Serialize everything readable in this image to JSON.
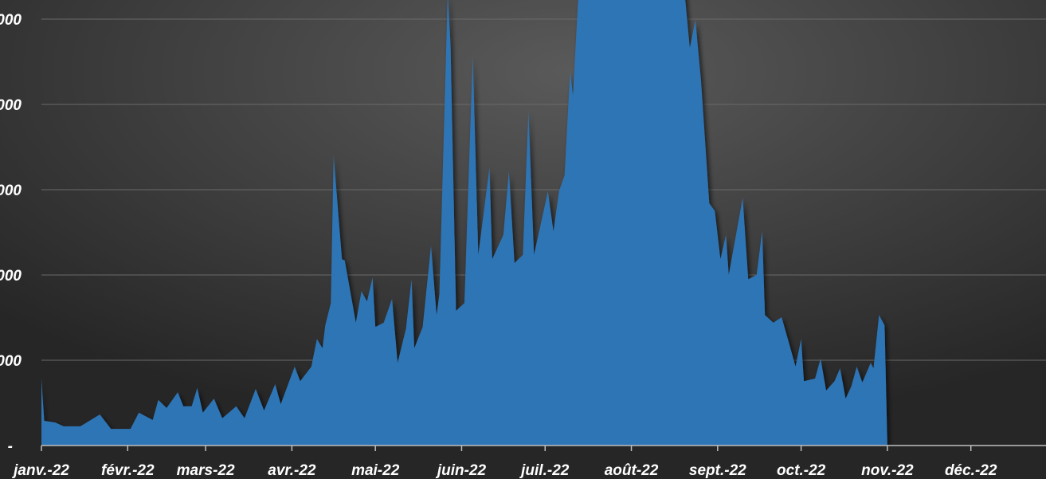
{
  "chart_data": {
    "type": "area",
    "color": "#2e75b6",
    "x": [
      0,
      1,
      5,
      8,
      14,
      21,
      25,
      32,
      35,
      40,
      42,
      45,
      49,
      51,
      54,
      56,
      58,
      62,
      65,
      70,
      73,
      77,
      80,
      84,
      86,
      91,
      93,
      97,
      99,
      101,
      102,
      104,
      105,
      108,
      109,
      113,
      115,
      117,
      119,
      120,
      123,
      126,
      128,
      131,
      133,
      134,
      137,
      140,
      142,
      143,
      146,
      147,
      149,
      152,
      155,
      157,
      161,
      162,
      166,
      168,
      170,
      173,
      175,
      177,
      182,
      184,
      186,
      188,
      190,
      191,
      193,
      203,
      214,
      230,
      233,
      235,
      237,
      240,
      242,
      244,
      246,
      247,
      252,
      254,
      257,
      259,
      260,
      263,
      266,
      269,
      271,
      273,
      274,
      278,
      280,
      282,
      285,
      287,
      289,
      291,
      293,
      295,
      298,
      299,
      301,
      303,
      304
    ],
    "values": [
      785,
      290,
      270,
      225,
      225,
      365,
      195,
      195,
      385,
      300,
      535,
      440,
      625,
      460,
      460,
      675,
      385,
      550,
      320,
      460,
      320,
      665,
      410,
      720,
      485,
      925,
      755,
      925,
      1250,
      1140,
      1410,
      1670,
      3400,
      2185,
      2170,
      1440,
      1810,
      1690,
      1970,
      1390,
      1440,
      1720,
      970,
      1370,
      1950,
      1140,
      1390,
      2345,
      1530,
      1770,
      5300,
      4710,
      1580,
      1670,
      4570,
      2235,
      3260,
      2185,
      2470,
      3215,
      2140,
      2235,
      3915,
      2235,
      2980,
      2510,
      2980,
      3170,
      4385,
      4100,
      5300,
      6200,
      6300,
      5700,
      4660,
      4990,
      4290,
      2840,
      2750,
      2185,
      2470,
      2000,
      2905,
      1950,
      2000,
      2515,
      1530,
      1440,
      1505,
      1160,
      925,
      1250,
      755,
      785,
      1020,
      645,
      755,
      905,
      550,
      690,
      925,
      740,
      970,
      905,
      1530,
      1410,
      0
    ],
    "xlim": [
      0,
      361
    ],
    "xticks": [
      {
        "value": 0,
        "label": "janv.-22"
      },
      {
        "value": 31,
        "label": "févr.-22"
      },
      {
        "value": 59,
        "label": "mars-22"
      },
      {
        "value": 90,
        "label": "avr.-22"
      },
      {
        "value": 120,
        "label": "mai-22"
      },
      {
        "value": 151,
        "label": "juin-22"
      },
      {
        "value": 181,
        "label": "juil.-22"
      },
      {
        "value": 212,
        "label": "août-22"
      },
      {
        "value": 243,
        "label": "sept.-22"
      },
      {
        "value": 273,
        "label": "oct.-22"
      },
      {
        "value": 304,
        "label": "nov.-22"
      },
      {
        "value": 334,
        "label": "déc.-22"
      }
    ],
    "ylim": [
      0,
      5224
    ],
    "yticks": [
      {
        "value": 0,
        "label": "-"
      },
      {
        "value": 1000,
        "label": "000"
      },
      {
        "value": 2000,
        "label": "000"
      },
      {
        "value": 3000,
        "label": "000"
      },
      {
        "value": 4000,
        "label": "000"
      },
      {
        "value": 5000,
        "label": "000"
      }
    ],
    "grid": true
  }
}
